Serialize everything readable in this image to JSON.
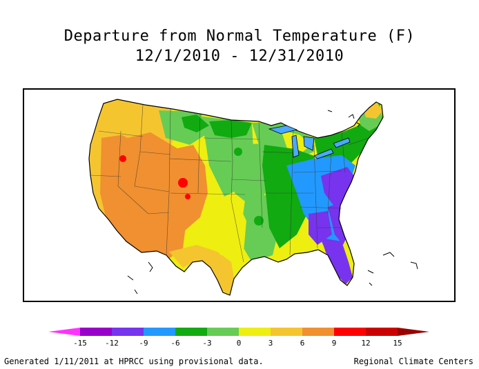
{
  "title": {
    "line1": "Departure from Normal Temperature (F)",
    "line2": "12/1/2010 - 12/31/2010"
  },
  "legend": {
    "ticks": [
      "-15",
      "-12",
      "-9",
      "-6",
      "-3",
      "0",
      "3",
      "6",
      "9",
      "12",
      "15"
    ],
    "colors": [
      "#ff33ff",
      "#9900cc",
      "#7733ee",
      "#2299ff",
      "#11aa11",
      "#66cc55",
      "#eeee11",
      "#f5c530",
      "#f09030",
      "#ff0000",
      "#cc0000",
      "#990000"
    ]
  },
  "footer": {
    "left": "Generated 1/11/2011 at HPRCC using provisional data.",
    "right": "Regional Climate Centers"
  }
}
